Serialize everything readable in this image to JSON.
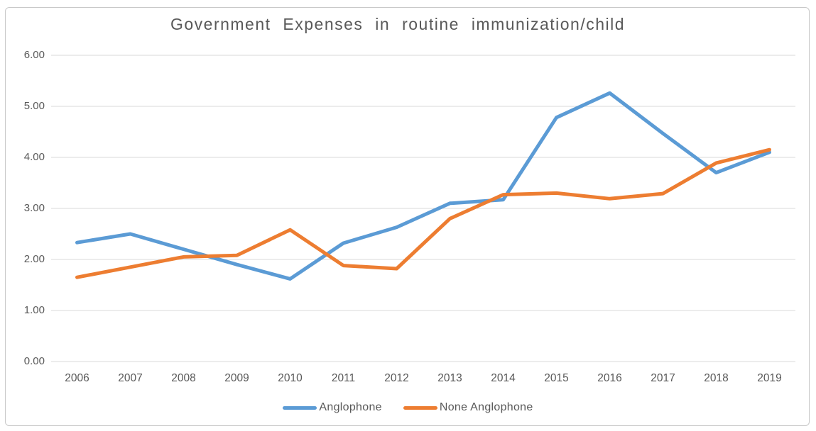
{
  "chart_data": {
    "type": "line",
    "title": "Government Expenses in routine immunization/child",
    "categories": [
      "2006",
      "2007",
      "2008",
      "2009",
      "2010",
      "2011",
      "2012",
      "2013",
      "2014",
      "2015",
      "2016",
      "2017",
      "2018",
      "2019"
    ],
    "series": [
      {
        "name": "Anglophone",
        "color": "#5B9BD5",
        "values": [
          2.33,
          2.5,
          2.2,
          1.9,
          1.62,
          2.32,
          2.63,
          3.1,
          3.17,
          4.78,
          5.26,
          4.47,
          3.7,
          4.1
        ]
      },
      {
        "name": "None Anglophone",
        "color": "#ED7D31",
        "values": [
          1.65,
          1.85,
          2.05,
          2.08,
          2.58,
          1.88,
          1.82,
          2.8,
          3.27,
          3.3,
          3.19,
          3.29,
          3.89,
          4.15
        ]
      }
    ],
    "y_ticks": [
      "6.00",
      "5.00",
      "4.00",
      "3.00",
      "2.00",
      "1.00",
      "0.00"
    ],
    "ylim": [
      0,
      6
    ],
    "xlabel": "",
    "ylabel": "",
    "grid": true,
    "legend_position": "bottom"
  },
  "colors": {
    "anglophone_line": "#5B9BD5",
    "none_anglophone_line": "#ED7D31",
    "gridline": "#D9D9D9",
    "tick_text": "#595959",
    "title_text": "#595959",
    "chart_border": "#C8C8C8",
    "background": "#FFFFFF"
  }
}
